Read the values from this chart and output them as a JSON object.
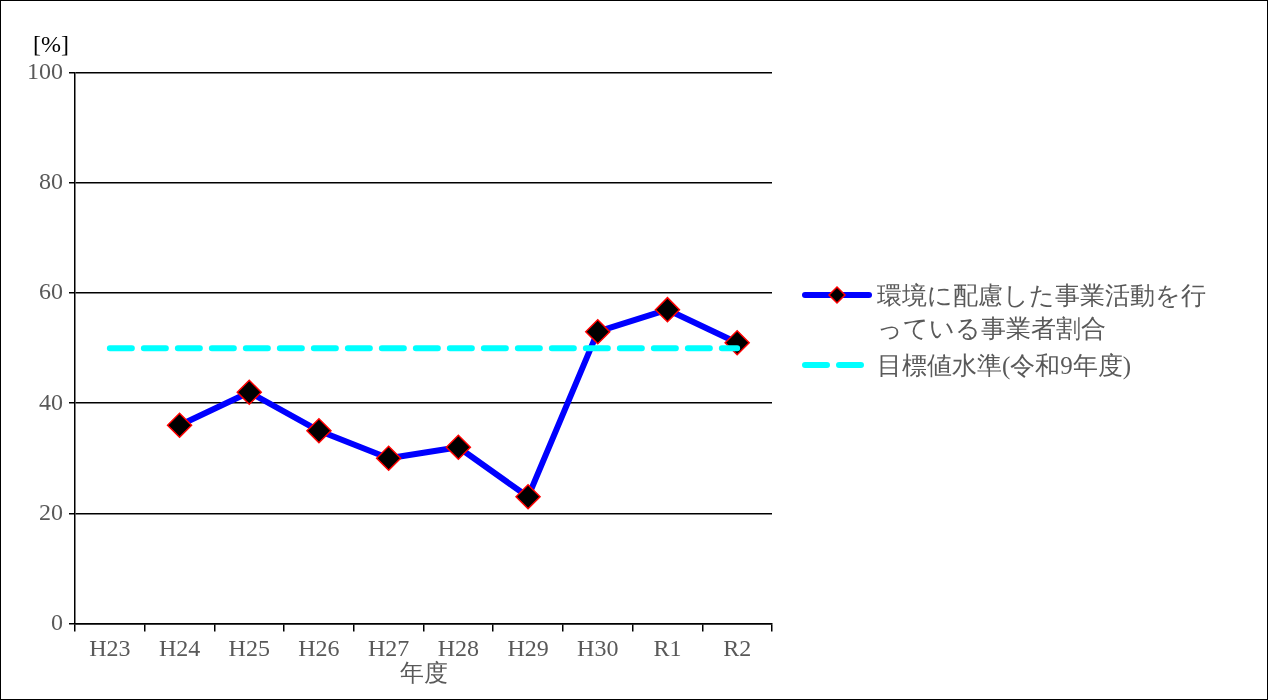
{
  "chart_data": {
    "type": "line",
    "xlabel": "年度",
    "ylabel": "[%]",
    "categories": [
      "H23",
      "H24",
      "H25",
      "H26",
      "H27",
      "H28",
      "H29",
      "H30",
      "R1",
      "R2"
    ],
    "series": [
      {
        "name": "環境に配慮した事業活動を行っている事業者割合",
        "color": "#0000ff",
        "values": [
          null,
          36,
          42,
          35,
          30,
          32,
          23,
          53,
          57,
          51
        ],
        "marker": "diamond",
        "line_style": "solid"
      },
      {
        "name": "目標値水準(令和9年度)",
        "color": "#00ffff",
        "values": [
          50,
          50,
          50,
          50,
          50,
          50,
          50,
          50,
          50,
          50
        ],
        "marker": "none",
        "line_style": "dashed"
      }
    ],
    "ylim": [
      0,
      100
    ],
    "yticks": [
      0,
      20,
      40,
      60,
      80,
      100
    ],
    "grid": "y",
    "legend": "right"
  }
}
